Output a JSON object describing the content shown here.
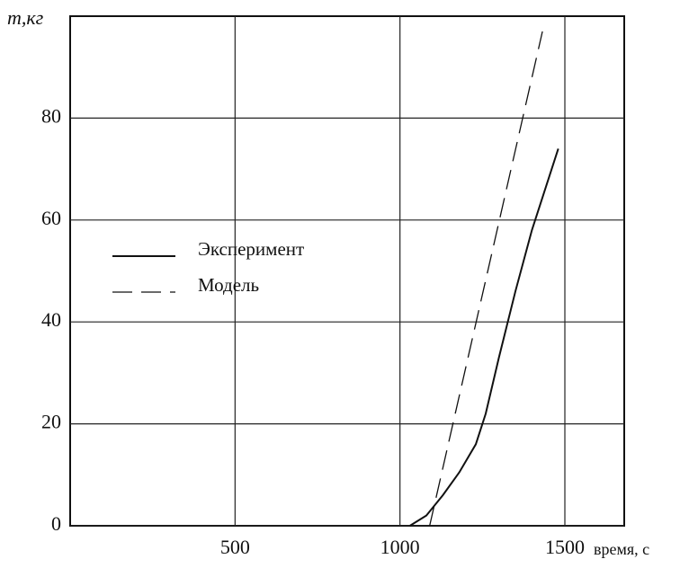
{
  "chart_data": {
    "type": "line",
    "ylabel": "m,кг",
    "xlabel": "время, с",
    "xlim": [
      0,
      1680
    ],
    "ylim": [
      0,
      100
    ],
    "xticks": [
      500,
      1000,
      1500
    ],
    "yticks": [
      0,
      20,
      40,
      60,
      80
    ],
    "grid": true,
    "legend": "left",
    "series": [
      {
        "name": "Эксперимент",
        "color": "#111111",
        "line_style": "solid",
        "x": [
          1030,
          1080,
          1130,
          1180,
          1230,
          1260,
          1300,
          1350,
          1400,
          1450,
          1480
        ],
        "values": [
          0,
          2,
          6,
          10.5,
          16,
          22,
          33,
          46,
          58,
          68,
          74
        ]
      },
      {
        "name": "Модель",
        "color": "#111111",
        "line_style": "dashed",
        "x": [
          1090,
          1432
        ],
        "values": [
          0,
          97
        ]
      }
    ]
  }
}
